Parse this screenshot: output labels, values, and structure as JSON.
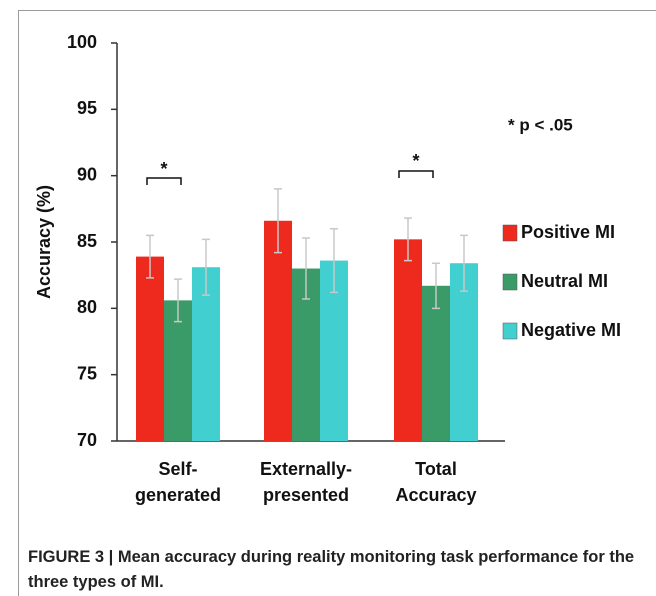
{
  "chart_data": {
    "type": "bar",
    "ylabel": "Accuracy (%)",
    "categories": [
      "Self-\ngenerated",
      "Externally-\npresented",
      "Total\nAccuracy"
    ],
    "series": [
      {
        "name": "Positive MI",
        "color": "#ee2a1f",
        "values": [
          83.9,
          86.6,
          85.2
        ],
        "errors": [
          1.6,
          2.4,
          1.6
        ]
      },
      {
        "name": "Neutral MI",
        "color": "#3a9b68",
        "values": [
          80.6,
          83.0,
          81.7
        ],
        "errors": [
          1.6,
          2.3,
          1.7
        ]
      },
      {
        "name": "Negative MI",
        "color": "#42cfcf",
        "values": [
          83.1,
          83.6,
          83.4
        ],
        "errors": [
          2.1,
          2.4,
          2.1
        ]
      }
    ],
    "ylim": [
      70,
      100
    ],
    "yticks": [
      70,
      75,
      80,
      85,
      90,
      95,
      100
    ],
    "legend": "right",
    "annotations": [
      "*",
      "*",
      "* p < .05"
    ]
  },
  "caption": "FIGURE 3 | Mean accuracy during reality monitoring task performance for the three types of MI."
}
